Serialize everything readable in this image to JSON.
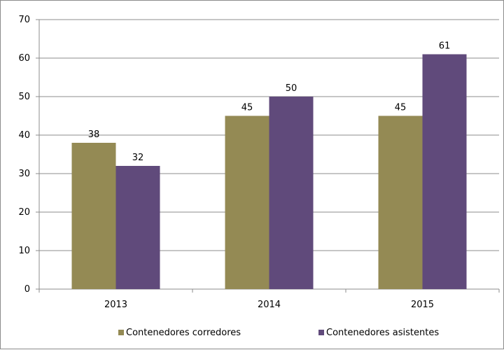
{
  "chart_data": {
    "type": "bar",
    "categories": [
      "2013",
      "2014",
      "2015"
    ],
    "series": [
      {
        "name": "Contenedores corredores",
        "values": [
          38,
          45,
          45
        ],
        "color": "#948a54"
      },
      {
        "name": "Contenedores asistentes",
        "values": [
          32,
          50,
          61
        ],
        "color": "#604a7b"
      }
    ],
    "ylim": [
      0,
      70
    ],
    "yticks": [
      0,
      10,
      20,
      30,
      40,
      50,
      60,
      70
    ],
    "grid": true,
    "legend_position": "bottom",
    "title": "",
    "xlabel": "",
    "ylabel": ""
  }
}
